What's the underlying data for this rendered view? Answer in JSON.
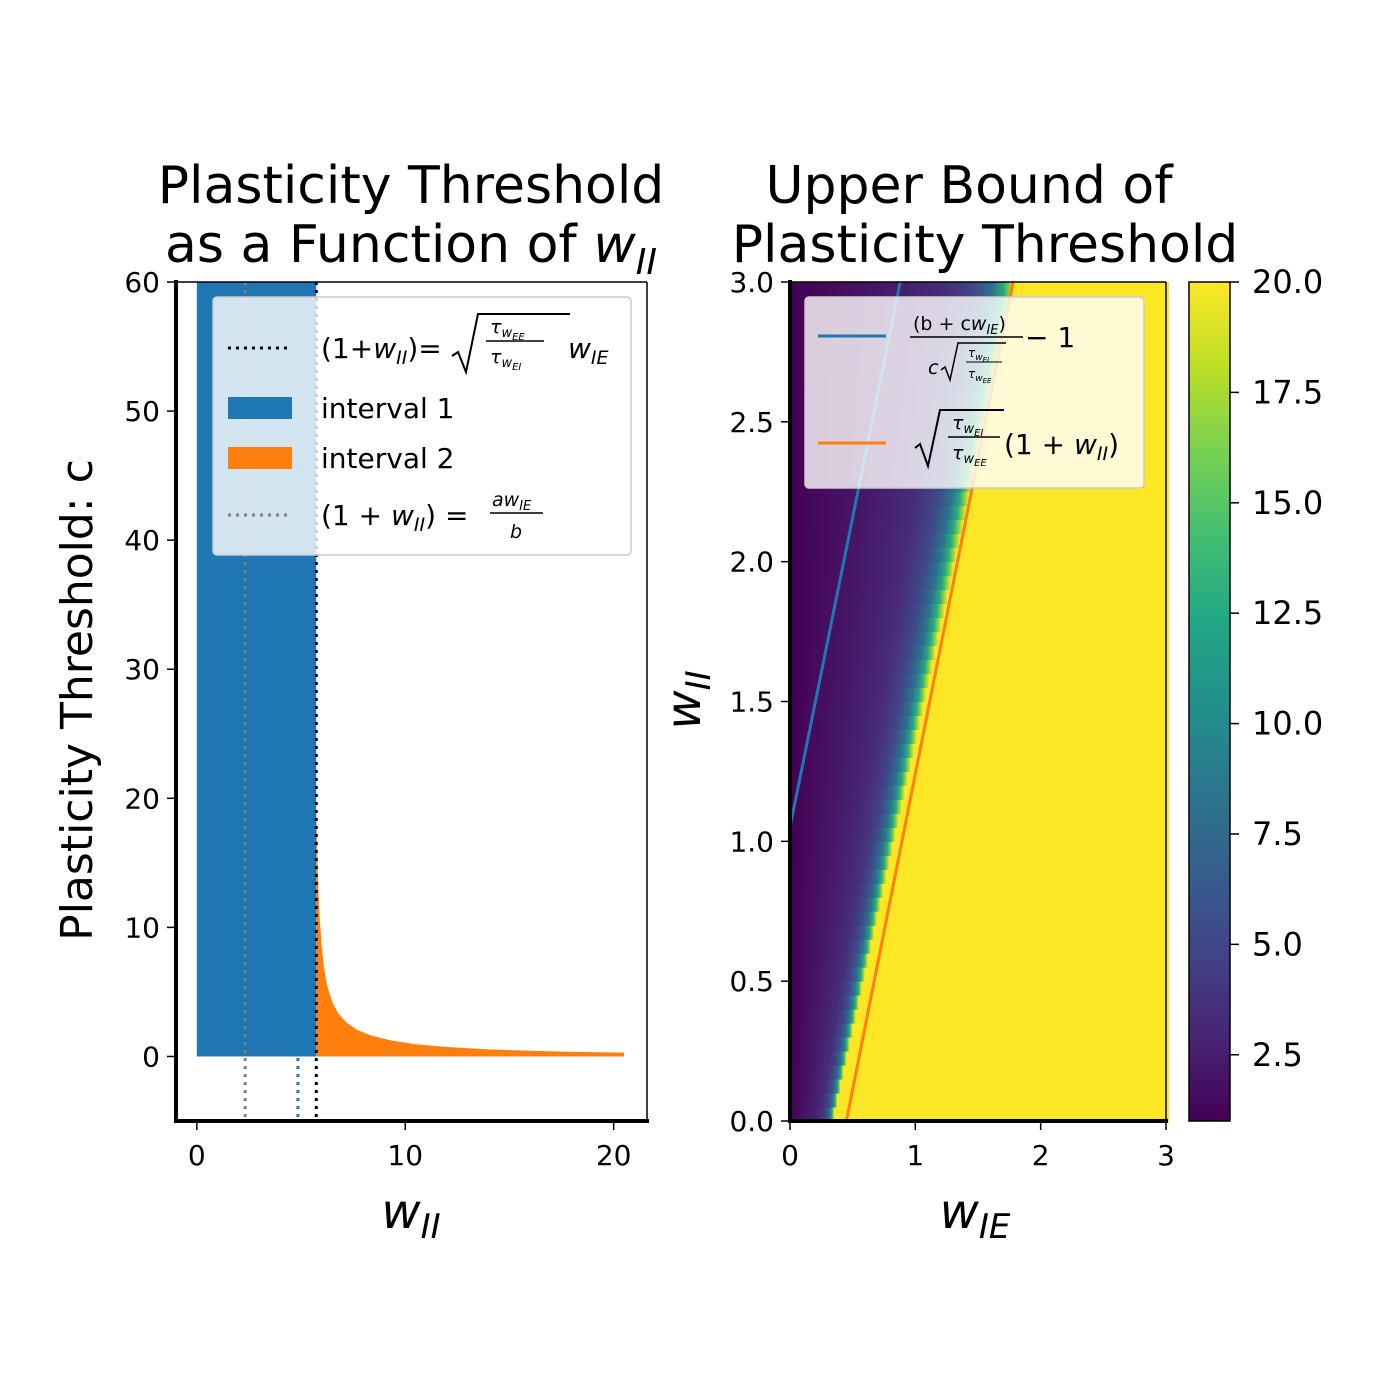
{
  "chart_data": [
    {
      "type": "area",
      "title_line1": "Plasticity Threshold",
      "title_line2_prefix": "as a Function of ",
      "title_line2_var": "w",
      "title_line2_sub": "II",
      "xlabel_var": "w",
      "xlabel_sub": "II",
      "ylabel": "Plasticity Threshold: c",
      "xlim": [
        -1,
        21.6
      ],
      "ylim": [
        -5,
        60
      ],
      "xticks": [
        0,
        10,
        20
      ],
      "xtick_labels": [
        "0",
        "10",
        "20"
      ],
      "yticks": [
        0,
        10,
        20,
        30,
        40,
        50,
        60
      ],
      "ytick_labels": [
        "0",
        "10",
        "20",
        "30",
        "40",
        "50",
        "60"
      ],
      "interval1": {
        "x_range": [
          0,
          5.73
        ],
        "c_range": [
          0,
          60
        ],
        "color": "#1f77b4"
      },
      "interval2": {
        "x_range": [
          5.73,
          20.5
        ],
        "color": "#ff7f0e",
        "x": [
          5.73,
          5.76,
          5.8,
          5.85,
          5.9,
          6.0,
          6.1,
          6.25,
          6.5,
          6.8,
          7.2,
          7.7,
          8.4,
          9.3,
          10.5,
          12,
          14,
          16,
          18,
          20.5
        ],
        "c": [
          20.0,
          17.3,
          14.7,
          12.3,
          10.6,
          8.4,
          6.9,
          5.5,
          4.2,
          3.3,
          2.6,
          2.05,
          1.6,
          1.25,
          0.95,
          0.73,
          0.55,
          0.44,
          0.36,
          0.3
        ]
      },
      "vlines": [
        {
          "x": 5.73,
          "color": "#000000",
          "style": "dotted"
        },
        {
          "x": 2.32,
          "color": "#808080",
          "style": "dotted"
        },
        {
          "x": 4.85,
          "color": "#1f77b4",
          "style": "dotted"
        }
      ],
      "legend": {
        "position": "upper-right",
        "entries": [
          {
            "label": "(1+wII)= sqrt(τwEE/τwEI) wIE",
            "color": "#000000",
            "kind": "dotted-line"
          },
          {
            "label": "interval 1",
            "color": "#1f77b4",
            "kind": "patch"
          },
          {
            "label": "interval 2",
            "color": "#ff7f0e",
            "kind": "patch"
          },
          {
            "label": "(1+wII)= a wIE / b",
            "color": "#808080",
            "kind": "dotted-line"
          }
        ],
        "e1_pre": "(1+",
        "e1_mid": ")= ",
        "e2_text": "interval 1",
        "e3_text": "interval 2",
        "e4_pre": "(1 + ",
        "e4_mid": ") = ",
        "var_w": "w",
        "sub_II": "II",
        "sub_IE": "IE",
        "sub_EE": "EE",
        "sub_EI": "EI",
        "tau": "τ",
        "a_w": "aw",
        "b": "b"
      }
    },
    {
      "type": "heatmap",
      "title_line1": "Upper Bound of",
      "title_line2": "Plasticity Threshold",
      "xlabel_var": "w",
      "xlabel_sub": "IE",
      "ylabel_var": "w",
      "ylabel_sub": "II",
      "xlim": [
        0,
        3
      ],
      "ylim": [
        0,
        3
      ],
      "xticks": [
        0,
        1,
        2,
        3
      ],
      "xtick_labels": [
        "0",
        "1",
        "2",
        "3"
      ],
      "yticks": [
        0,
        0.5,
        1,
        1.5,
        2,
        2.5,
        3
      ],
      "ytick_labels": [
        "0.0",
        "0.5",
        "1.0",
        "1.5",
        "2.0",
        "2.5",
        "3.0"
      ],
      "colorbar": {
        "min": 1,
        "max": 20,
        "colormap": "viridis",
        "ticks": [
          2.5,
          5,
          7.5,
          10,
          12.5,
          15,
          17.5,
          20
        ],
        "tick_labels": [
          "2.5",
          "5.0",
          "7.5",
          "10.0",
          "12.5",
          "15.0",
          "17.5",
          "20.0"
        ]
      },
      "field": {
        "description_var": "wII",
        "saturation_line_slope": 2.05,
        "saturation_line_intercept": -0.7,
        "min_value": 1.1,
        "max_value": 20
      },
      "lines": [
        {
          "name": "(b + c wIE)/(c sqrt(τwEI/τwEE)) - 1",
          "color": "#1f77b4",
          "points": [
            [
              0,
              1.05
            ],
            [
              0.88,
              3.0
            ]
          ]
        },
        {
          "name": "sqrt(τwEI/τwEE)(1 + wII)",
          "color": "#ff7f0e",
          "points": [
            [
              0.45,
              0.0
            ],
            [
              1.78,
              3.0
            ]
          ]
        }
      ],
      "legend": {
        "position": "upper-right",
        "b_plus": "(b + c",
        "close": ")",
        "c_sqrt": "c",
        "minus1": " − 1",
        "one_plus": "(1 + ",
        "var_w": "w",
        "sub_IE": "IE",
        "sub_II": "II",
        "sub_EE": "EE",
        "sub_EI": "EI",
        "tau": "τ"
      }
    }
  ]
}
